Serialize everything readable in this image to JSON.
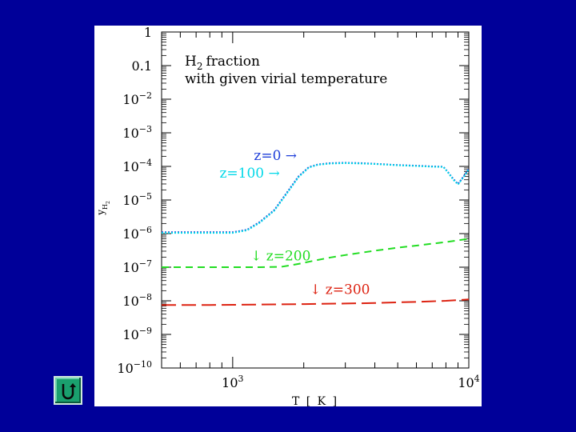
{
  "colors": {
    "background": "#000099",
    "panel": "#ffffff",
    "button": "#1aa06e"
  },
  "chart_data": {
    "type": "line",
    "title_lines": [
      "H",
      "fraction",
      "with given virial temperature"
    ],
    "title_subscript": "2",
    "xlabel": "T [ K ]",
    "ylabel": "y",
    "ylabel_subscript": "H",
    "ylabel_subsubscript": "2",
    "x_scale": "log",
    "y_scale": "log",
    "xlim": [
      500,
      10000
    ],
    "ylim": [
      1e-10,
      1
    ],
    "x_ticks": [
      {
        "value": 1000,
        "base": "10",
        "exp": "3"
      },
      {
        "value": 10000,
        "base": "10",
        "exp": "4"
      }
    ],
    "y_ticks": [
      {
        "value": 1,
        "base": "1",
        "exp": ""
      },
      {
        "value": 0.1,
        "base": "0.1",
        "exp": ""
      },
      {
        "value": 0.01,
        "base": "10",
        "exp": "−2"
      },
      {
        "value": 0.001,
        "base": "10",
        "exp": "−3"
      },
      {
        "value": 0.0001,
        "base": "10",
        "exp": "−4"
      },
      {
        "value": 1e-05,
        "base": "10",
        "exp": "−5"
      },
      {
        "value": 1e-06,
        "base": "10",
        "exp": "−6"
      },
      {
        "value": 1e-07,
        "base": "10",
        "exp": "−7"
      },
      {
        "value": 1e-08,
        "base": "10",
        "exp": "−8"
      },
      {
        "value": 1e-09,
        "base": "10",
        "exp": "−9"
      },
      {
        "value": 1e-10,
        "base": "10",
        "exp": "−10"
      }
    ],
    "series": [
      {
        "name": "z=0",
        "label": "z=0 →",
        "color": "#1f3fd9",
        "dash": "2,2",
        "label_pos": {
          "x": 1230,
          "y": 0.000155
        },
        "x": [
          500,
          800,
          1000,
          1150,
          1300,
          1500,
          1700,
          1900,
          2100,
          2300,
          2600,
          3000,
          3500,
          4000,
          5000,
          6000,
          7000,
          7800,
          8200,
          8600,
          9000,
          9500,
          10000
        ],
        "y": [
          1.1e-06,
          1.1e-06,
          1.1e-06,
          1.3e-06,
          2.2e-06,
          5e-06,
          1.7e-05,
          5e-05,
          9.5e-05,
          0.000115,
          0.000125,
          0.000128,
          0.000125,
          0.00012,
          0.00011,
          0.000105,
          0.0001,
          9.8e-05,
          6.5e-05,
          4.2e-05,
          3e-05,
          5e-05,
          8.5e-05
        ]
      },
      {
        "name": "z=100",
        "label": "z=100 →",
        "color": "#00d8e8",
        "dash": "2,2",
        "label_pos": {
          "x": 880,
          "y": 4.7e-05
        },
        "x": [
          500,
          800,
          1000,
          1150,
          1300,
          1500,
          1700,
          1900,
          2100,
          2300,
          2600,
          3000,
          3500,
          4000,
          5000,
          6000,
          7000,
          7800,
          8200,
          8600,
          9000,
          9500,
          10000
        ],
        "y": [
          1.05e-06,
          1.05e-06,
          1.05e-06,
          1.25e-06,
          2.1e-06,
          4.8e-06,
          1.6e-05,
          4.8e-05,
          9.2e-05,
          0.000112,
          0.000122,
          0.000125,
          0.000122,
          0.000118,
          0.000108,
          0.000103,
          9.8e-05,
          9.6e-05,
          6.3e-05,
          4e-05,
          2.9e-05,
          4.8e-05,
          8.2e-05
        ]
      },
      {
        "name": "z=200",
        "label": "↓  z=200",
        "color": "#22dd22",
        "dash": "9,6",
        "label_pos": {
          "x": 1190,
          "y": 1.6e-07
        },
        "x": [
          500,
          800,
          1000,
          1300,
          1600,
          1900,
          2200,
          2600,
          3000,
          3500,
          4000,
          5000,
          6000,
          7000,
          8000,
          9000,
          10000
        ],
        "y": [
          1e-07,
          1e-07,
          1e-07,
          1e-07,
          1.02e-07,
          1.25e-07,
          1.55e-07,
          1.95e-07,
          2.3e-07,
          2.7e-07,
          3.1e-07,
          3.8e-07,
          4.4e-07,
          5e-07,
          5.6e-07,
          6.3e-07,
          7e-07
        ]
      },
      {
        "name": "z=300",
        "label": "↓  z=300",
        "color": "#dd2211",
        "dash": "18,7",
        "label_pos": {
          "x": 2120,
          "y": 1.6e-08
        },
        "x": [
          500,
          800,
          1000,
          1500,
          2000,
          3000,
          4000,
          5000,
          6000,
          7000,
          8000,
          9000,
          10000
        ],
        "y": [
          7.5e-09,
          7.5e-09,
          7.6e-09,
          7.8e-09,
          8e-09,
          8.3e-09,
          8.6e-09,
          9e-09,
          9.3e-09,
          9.7e-09,
          1e-08,
          1.05e-08,
          1.1e-08
        ]
      }
    ]
  },
  "nav": {
    "back_icon": "u-turn-back-icon"
  }
}
